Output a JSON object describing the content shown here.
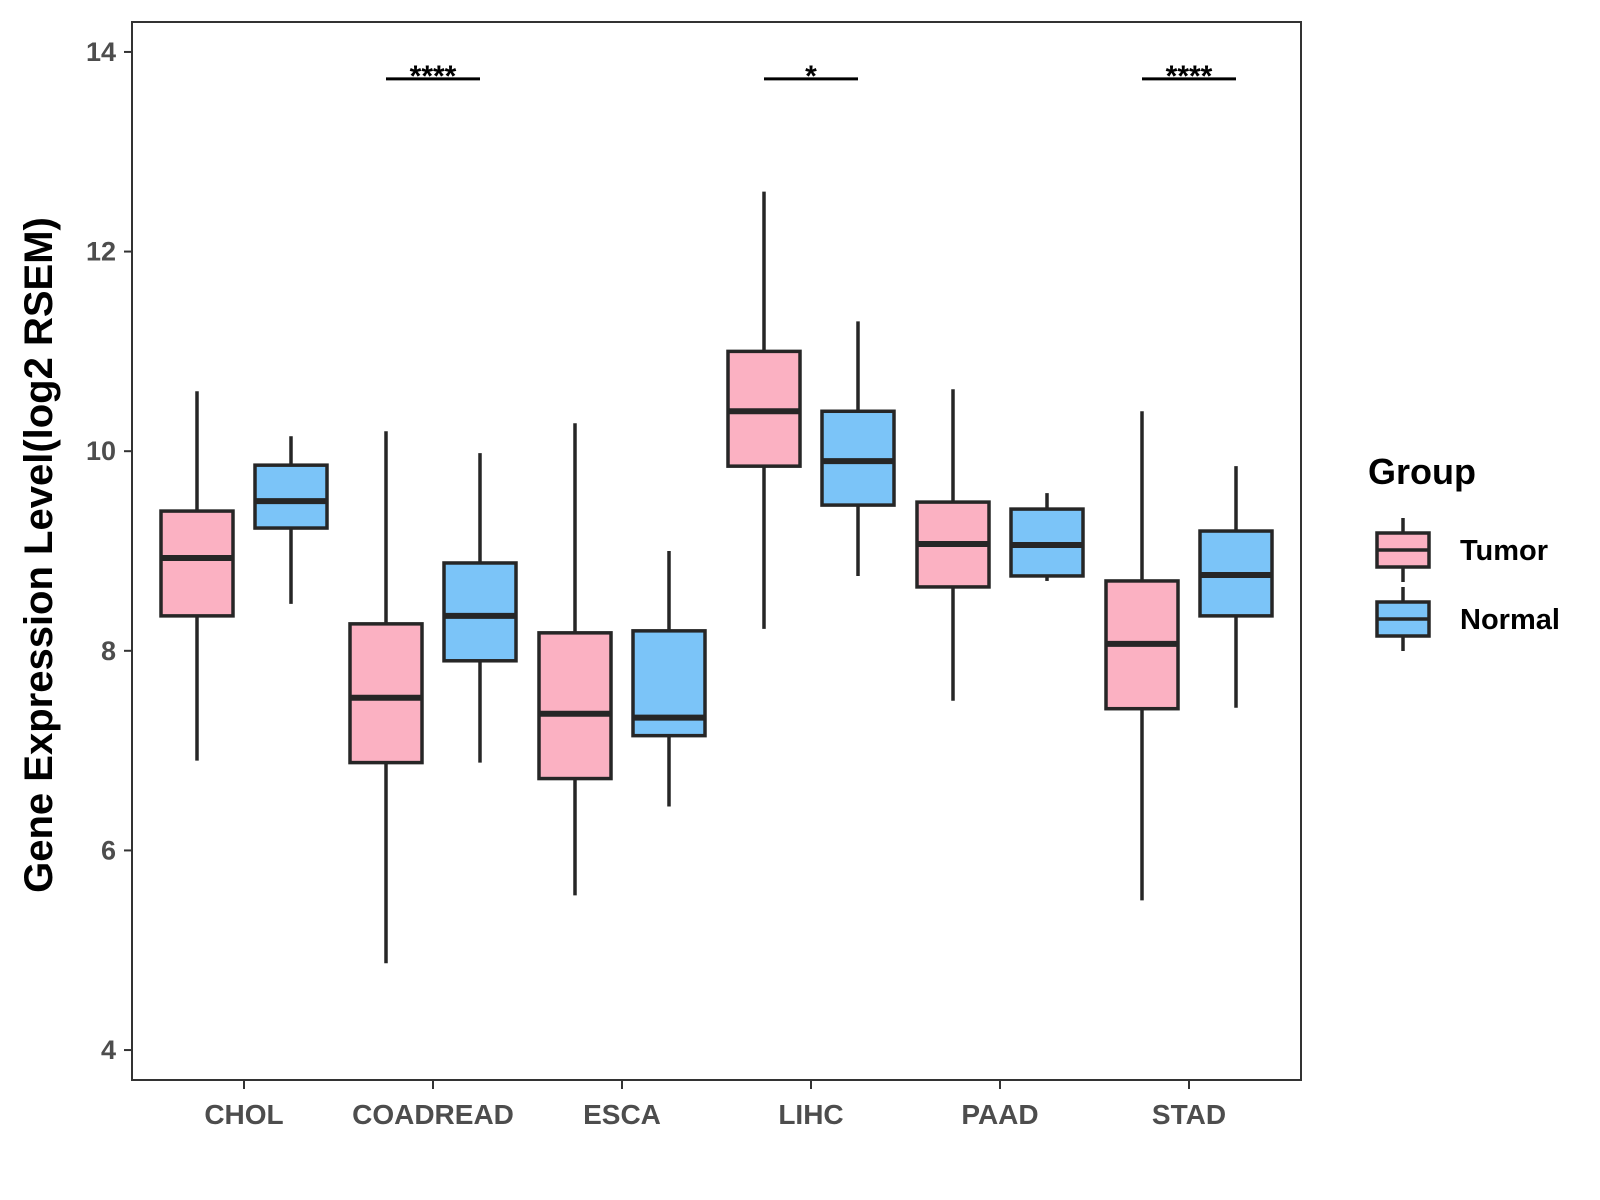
{
  "chart_data": {
    "type": "boxplot",
    "title": "",
    "xlabel": "",
    "ylabel": "Gene Expression Level(log2 RSEM)",
    "ylim": [
      3.7,
      14.3
    ],
    "yticks": [
      4,
      6,
      8,
      10,
      12,
      14
    ],
    "grid": false,
    "legend_position": "right",
    "categories": [
      "CHOL",
      "COADREAD",
      "ESCA",
      "LIHC",
      "PAAD",
      "STAD"
    ],
    "legend": {
      "title": "Group",
      "entries": [
        "Tumor",
        "Normal"
      ]
    },
    "series": [
      {
        "name": "Tumor",
        "color": "#fbb1c2",
        "boxes": [
          {
            "whisker_low": 6.9,
            "q1": 8.35,
            "median": 8.93,
            "q3": 9.4,
            "whisker_high": 10.6
          },
          {
            "whisker_low": 4.87,
            "q1": 6.88,
            "median": 7.53,
            "q3": 8.27,
            "whisker_high": 10.2
          },
          {
            "whisker_low": 5.55,
            "q1": 6.72,
            "median": 7.37,
            "q3": 8.18,
            "whisker_high": 10.28
          },
          {
            "whisker_low": 8.22,
            "q1": 9.85,
            "median": 10.4,
            "q3": 11.0,
            "whisker_high": 12.6
          },
          {
            "whisker_low": 7.5,
            "q1": 8.64,
            "median": 9.07,
            "q3": 9.49,
            "whisker_high": 10.62
          },
          {
            "whisker_low": 5.5,
            "q1": 7.42,
            "median": 8.07,
            "q3": 8.7,
            "whisker_high": 10.4
          }
        ]
      },
      {
        "name": "Normal",
        "color": "#7bc4f8",
        "boxes": [
          {
            "whisker_low": 8.47,
            "q1": 9.23,
            "median": 9.5,
            "q3": 9.86,
            "whisker_high": 10.15
          },
          {
            "whisker_low": 6.88,
            "q1": 7.9,
            "median": 8.35,
            "q3": 8.88,
            "whisker_high": 9.98
          },
          {
            "whisker_low": 6.44,
            "q1": 7.15,
            "median": 7.33,
            "q3": 8.2,
            "whisker_high": 9.0
          },
          {
            "whisker_low": 8.75,
            "q1": 9.46,
            "median": 9.9,
            "q3": 10.4,
            "whisker_high": 11.3
          },
          {
            "whisker_low": 8.7,
            "q1": 8.75,
            "median": 9.06,
            "q3": 9.42,
            "whisker_high": 9.58
          },
          {
            "whisker_low": 7.43,
            "q1": 8.35,
            "median": 8.76,
            "q3": 9.2,
            "whisker_high": 9.85
          }
        ]
      }
    ],
    "significance": [
      {
        "category": "CHOL",
        "label": ""
      },
      {
        "category": "COADREAD",
        "label": "****"
      },
      {
        "category": "ESCA",
        "label": ""
      },
      {
        "category": "LIHC",
        "label": "*"
      },
      {
        "category": "PAAD",
        "label": ""
      },
      {
        "category": "STAD",
        "label": "****"
      }
    ],
    "significance_bar_y": 13.73
  }
}
